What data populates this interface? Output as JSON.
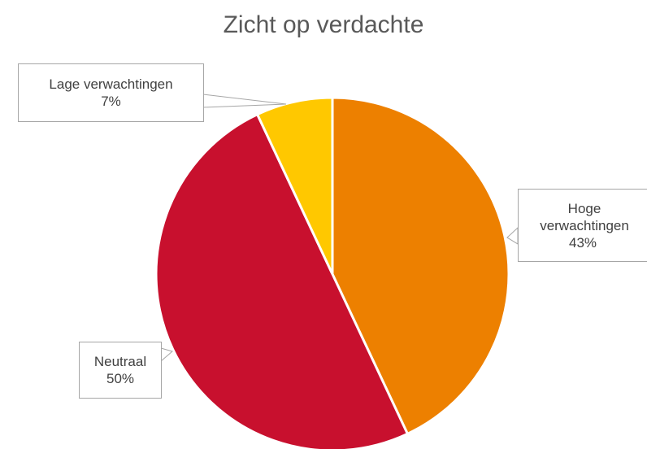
{
  "chart_data": {
    "type": "pie",
    "title": "Zicht op verdachte",
    "categories": [
      "Hoge verwachtingen",
      "Neutraal",
      "Lage verwachtingen"
    ],
    "values": [
      43,
      50,
      7
    ],
    "value_labels": [
      "43%",
      "50%",
      "7%"
    ],
    "colors": [
      "#ed8000",
      "#c8102e",
      "#ffc800"
    ]
  }
}
